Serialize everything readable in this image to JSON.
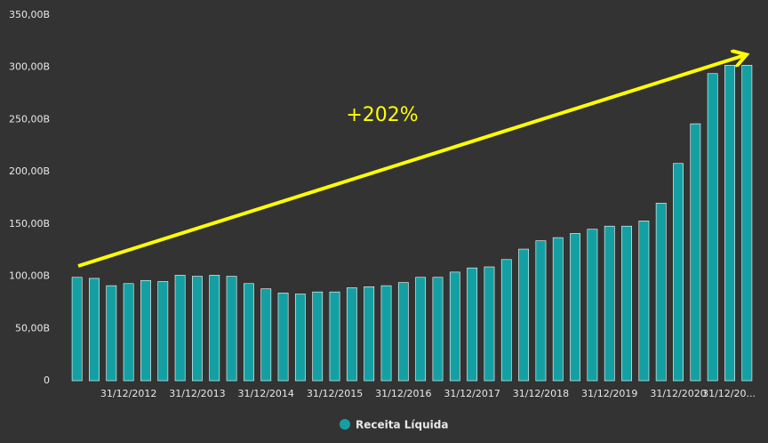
{
  "chart_data": {
    "type": "bar",
    "categories": [
      null,
      null,
      null,
      "31/12/2012",
      null,
      null,
      null,
      "31/12/2013",
      null,
      null,
      null,
      "31/12/2014",
      null,
      null,
      null,
      "31/12/2015",
      null,
      null,
      null,
      "31/12/2016",
      null,
      null,
      null,
      "31/12/2017",
      null,
      null,
      null,
      "31/12/2018",
      null,
      null,
      null,
      "31/12/2019",
      null,
      null,
      null,
      "31/12/2020",
      null,
      null,
      null,
      "31/12/20..."
    ],
    "series": [
      {
        "name": "Receita Líquida",
        "color": "#14a0a3",
        "values": [
          99,
          98,
          91,
          93,
          96,
          95,
          101,
          100,
          101,
          100,
          93,
          88,
          84,
          83,
          85,
          85,
          89,
          90,
          91,
          94,
          99,
          99,
          104,
          108,
          109,
          116,
          126,
          134,
          137,
          141,
          145,
          148,
          148,
          153,
          170,
          208,
          246,
          294,
          302,
          302
        ]
      }
    ],
    "ylim": [
      0,
      350
    ],
    "yticks": [
      0,
      {
        "value": 50,
        "label": "50,00B"
      },
      {
        "value": 100,
        "label": "100,00B"
      },
      {
        "value": 150,
        "label": "150,00B"
      },
      {
        "value": 200,
        "label": "200,00B"
      },
      {
        "value": 250,
        "label": "250,00B"
      },
      {
        "value": 300,
        "label": "300,00B"
      },
      {
        "value": 350,
        "label": "350,00B"
      }
    ],
    "annotation": "+202%"
  }
}
